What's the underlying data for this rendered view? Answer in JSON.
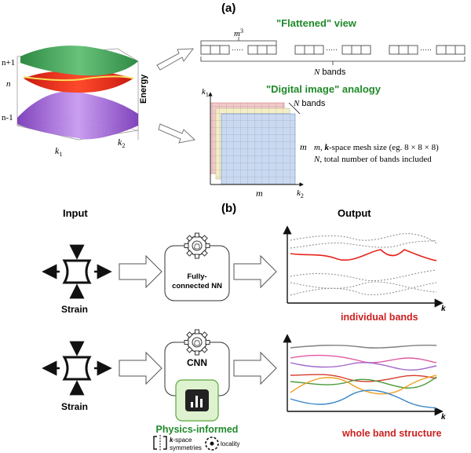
{
  "panel_a": {
    "label": "(a)",
    "surface": {
      "energy_label": "Energy",
      "band_labels": [
        "n+1",
        "n",
        "n-1"
      ],
      "k_labels": [
        "k",
        "1",
        "k",
        "2"
      ]
    },
    "flattened": {
      "title": "\"Flattened\" view",
      "m_label": "m",
      "m_exp": "3",
      "n_label": "N",
      "n_suffix": " bands"
    },
    "digital": {
      "title": "\"Digital image\" analogy",
      "k1_label": "k",
      "k1_sub": "1",
      "k2_label": "k",
      "k2_sub": "2",
      "n_label": "N",
      "n_suffix": " bands",
      "m_side": "m",
      "m_bottom": "m",
      "legend_m_var": "m",
      "legend_m_comma": ", ",
      "legend_m_k": "k",
      "legend_m_text": "-space mesh size (eg. 8 × 8 × 8)",
      "legend_n_var": "N",
      "legend_n_text": ", total number of bands included"
    }
  },
  "panel_b": {
    "label": "(b)",
    "input_header": "Input",
    "output_header": "Output",
    "row1": {
      "strain_label": "Strain",
      "nn_label_1": "Fully-",
      "nn_label_2": "connected NN",
      "axis_k": "k",
      "caption": "individual bands"
    },
    "row2": {
      "strain_label": "Strain",
      "nn_label": "CNN",
      "axis_k": "k",
      "caption": "whole band structure"
    },
    "physics": {
      "title": "Physics-informed",
      "k_symbol": "k",
      "sym_line1": "-space",
      "sym_line2": "symmetries",
      "locality": "locality"
    }
  },
  "colors": {
    "green_title": "#1f8a2a",
    "red_caption": "#cc1f1f",
    "band_green": "#3a9a4e",
    "band_red": "#e8241c",
    "band_purple": "#9b5fd0",
    "grid_blue": "#c9d9f2",
    "grid_yellow": "#f6efc6",
    "grid_pink": "#f3c8c8",
    "physics_green": "#dff2cf",
    "line_gray": "#7f7f7f",
    "line_pink": "#e05aa0",
    "line_purple": "#a066cc",
    "line_green": "#4a9a3a",
    "line_orange": "#f0a020",
    "line_blue": "#3a88c8"
  },
  "icons": [
    "gear-icon",
    "brain-icon",
    "bar-chart-icon",
    "arrow-icon",
    "strain-icon",
    "mirror-symmetry-icon",
    "locality-icon"
  ]
}
